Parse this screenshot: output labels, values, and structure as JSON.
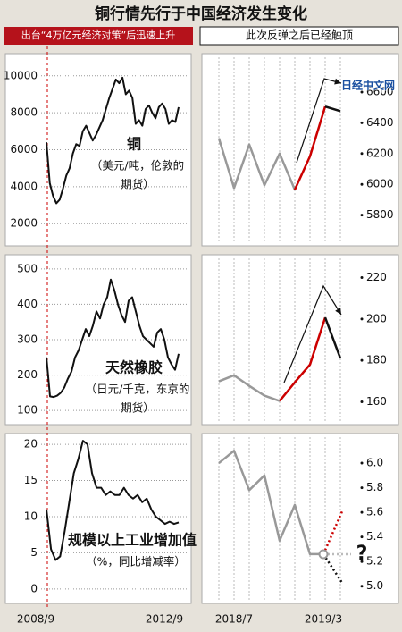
{
  "title": "铜行情先行于中国经济发生变化",
  "left_note": "出台“4万亿元经济对策”后迅速上升",
  "right_note": "此次反弹之后已经触顶",
  "watermark": "日经中文网",
  "chart_data": [
    {
      "type": "line",
      "label": "铜",
      "note_lines": [
        "（美元/吨，伦敦的",
        "期货）"
      ],
      "color": "#111111",
      "ylim": [
        800,
        11200
      ],
      "yticks": [
        2000,
        4000,
        6000,
        8000,
        10000
      ],
      "values": [
        6400,
        4200,
        3500,
        3100,
        3300,
        3900,
        4600,
        5000,
        5800,
        6300,
        6200,
        7000,
        7300,
        6900,
        6500,
        6800,
        7200,
        7600,
        8200,
        8800,
        9300,
        9800,
        9600,
        9900,
        9000,
        9200,
        8800,
        7400,
        7600,
        7300,
        8200,
        8400,
        8000,
        7700,
        8300,
        8500,
        8200,
        7400,
        7600,
        7500,
        8300
      ]
    },
    {
      "type": "line",
      "ylim": [
        5600,
        6850
      ],
      "yticks": [
        5800,
        6000,
        6200,
        6400,
        6600
      ],
      "series": [
        {
          "color": "#999999",
          "values": [
            6300,
            5976,
            6259,
            5994,
            6200,
            5965,
            null,
            null,
            null
          ]
        },
        {
          "color": "#cc0000",
          "values": [
            null,
            null,
            null,
            null,
            null,
            5965,
            6182,
            6506,
            null
          ]
        },
        {
          "color": "#111111",
          "values": [
            null,
            null,
            null,
            null,
            null,
            null,
            null,
            6506,
            6476
          ]
        }
      ]
    },
    {
      "type": "line",
      "label": "天然橡胶",
      "note_lines": [
        "（日元/千克，东京的",
        "期货）"
      ],
      "color": "#111111",
      "ylim": [
        60,
        540
      ],
      "yticks": [
        100,
        200,
        300,
        400,
        500
      ],
      "values": [
        250,
        140,
        138,
        142,
        150,
        165,
        190,
        210,
        250,
        270,
        300,
        330,
        310,
        340,
        380,
        360,
        400,
        420,
        470,
        440,
        400,
        370,
        350,
        410,
        420,
        380,
        340,
        310,
        300,
        290,
        280,
        320,
        330,
        300,
        250,
        230,
        215,
        260
      ]
    },
    {
      "type": "line",
      "ylim": [
        149,
        231
      ],
      "yticks": [
        160,
        180,
        200,
        220
      ],
      "series": [
        {
          "color": "#999999",
          "values": [
            169.9,
            172.8,
            167.7,
            163,
            160.4,
            null,
            null,
            null,
            null
          ]
        },
        {
          "color": "#cc0000",
          "values": [
            null,
            null,
            null,
            null,
            160.4,
            169.4,
            178,
            200.7,
            null
          ]
        },
        {
          "color": "#111111",
          "values": [
            null,
            null,
            null,
            null,
            null,
            null,
            null,
            200.7,
            181
          ]
        }
      ]
    },
    {
      "type": "line",
      "label": "规模以上工业增加值",
      "note_lines": [
        "（%，同比增减率）"
      ],
      "color": "#111111",
      "ylim": [
        -2,
        21.5
      ],
      "yticks": [
        0,
        5,
        10,
        15,
        20
      ],
      "x_labels": [
        "2008/9",
        "2012/9"
      ],
      "values": [
        11,
        5.5,
        4,
        4.5,
        8,
        12,
        16,
        18,
        20.5,
        20,
        16,
        14,
        14,
        13,
        13.5,
        13,
        13,
        14,
        13,
        12.5,
        13,
        12,
        12.5,
        11,
        10,
        9.5,
        9,
        9.3,
        9,
        9.2
      ]
    },
    {
      "type": "line",
      "ylim": [
        4.86,
        6.24
      ],
      "yticks": [
        {
          "value": 5.0,
          "label": "5.0"
        },
        5.2,
        5.4,
        5.6,
        5.8,
        {
          "value": 6.0,
          "label": "6.0"
        }
      ],
      "x_labels": [
        "2018/7",
        "2019/3"
      ],
      "series": [
        {
          "color": "#999999",
          "values": [
            6.0,
            6.1,
            5.78,
            5.9,
            5.37,
            5.66,
            5.26,
            5.26
          ]
        }
      ]
    }
  ]
}
